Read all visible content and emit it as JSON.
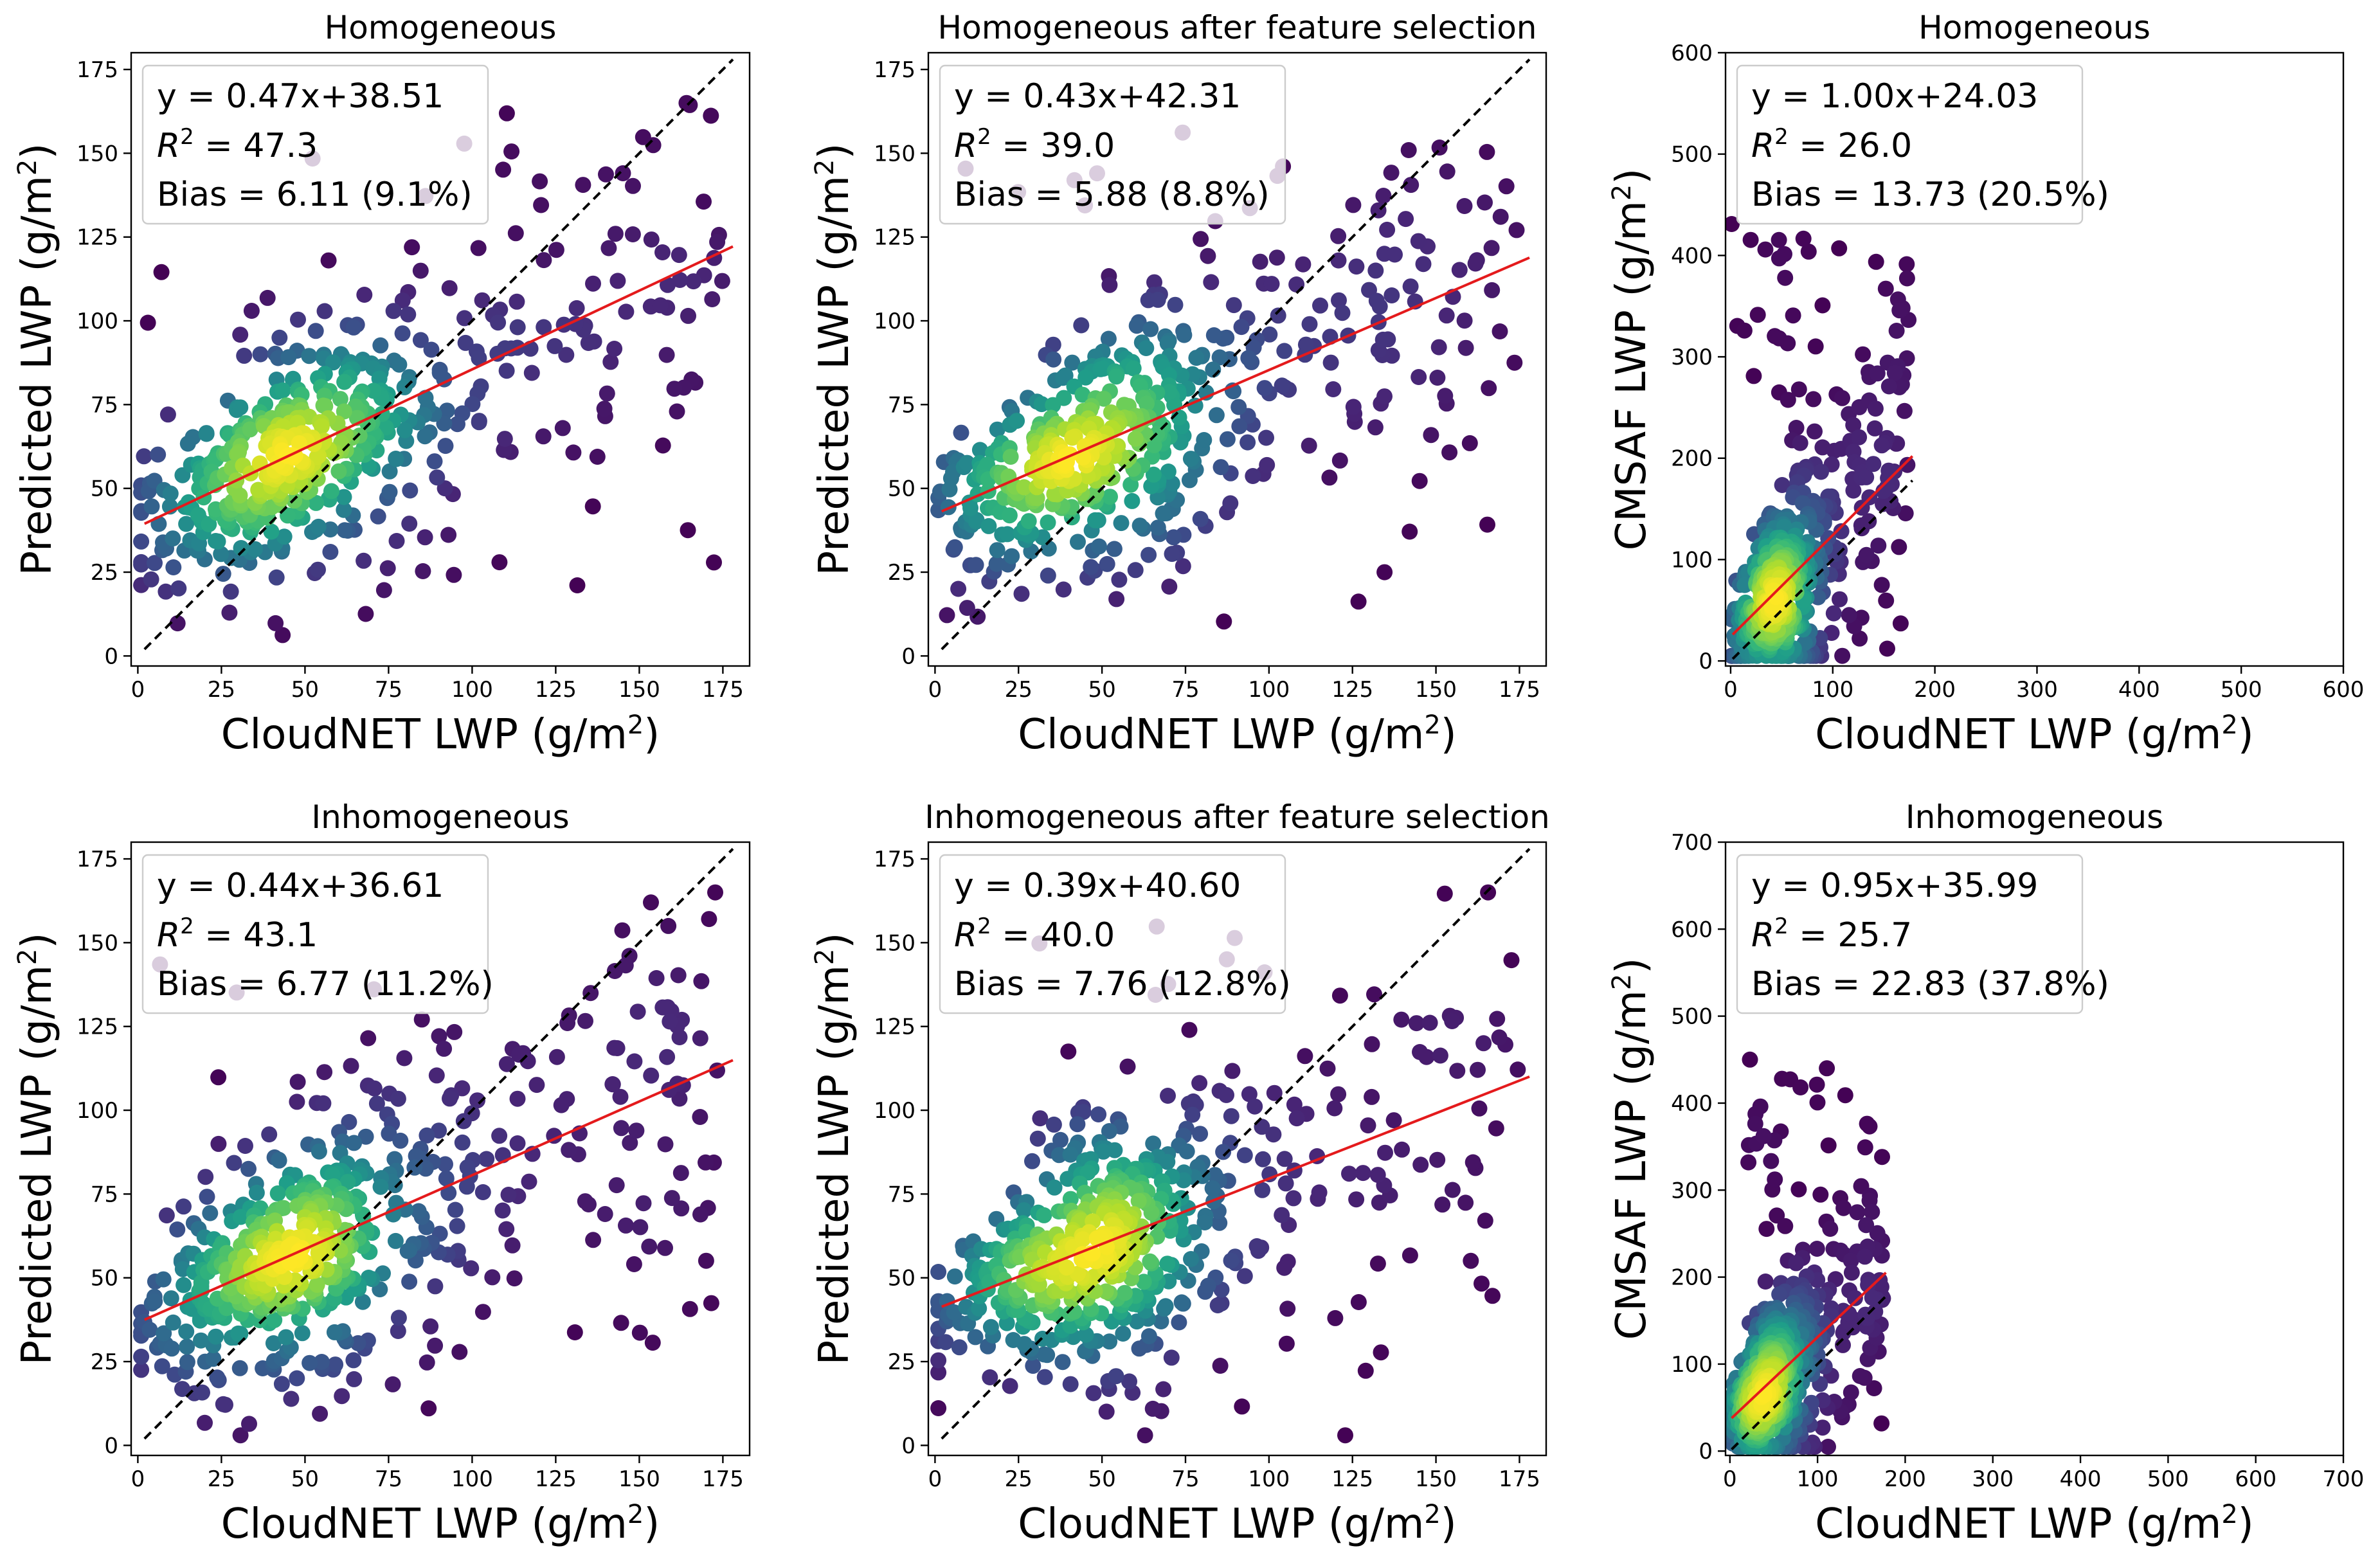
{
  "figure": {
    "panel_title_1": "Homogeneous",
    "panel_title_2": "Homogeneous after feature selection",
    "panel_title_3": "Homogeneous",
    "panel_title_4": "Inhomogeneous",
    "panel_title_5": "Inhomogeneous after feature selection",
    "panel_title_6": "Inhomogeneous"
  },
  "colors": {
    "fit_line": "#e41a1c",
    "identity_line": "#000000",
    "colormap": [
      "#440154",
      "#482878",
      "#3e4989",
      "#31688e",
      "#26828e",
      "#1f9e89",
      "#35b779",
      "#6ece58",
      "#b5de2b",
      "#fde725"
    ]
  },
  "chart_data": [
    {
      "type": "scatter",
      "title": "Homogeneous",
      "xlabel": "CloudNET LWP (g/m",
      "ylabel": "Predicted LWP (g/m",
      "label_sup": "2",
      "label_close": ")",
      "xlim": [
        -2,
        183
      ],
      "ylim": [
        -3,
        180
      ],
      "xticks": [
        0,
        25,
        50,
        75,
        100,
        125,
        150,
        175
      ],
      "yticks": [
        0,
        25,
        50,
        75,
        100,
        125,
        150,
        175
      ],
      "fit": {
        "slope": 0.47,
        "intercept": 38.51
      },
      "identity": [
        2,
        178
      ],
      "n_points": 520,
      "legend": {
        "equation": "y = 0.47x+38.51",
        "r2_label": "R",
        "r2_sup": "2",
        "r2_value": " = 47.3",
        "bias": "Bias = 6.11 (9.1%)"
      }
    },
    {
      "type": "scatter",
      "title": "Homogeneous after feature selection",
      "xlabel": "CloudNET LWP (g/m",
      "ylabel": "Predicted LWP (g/m",
      "label_sup": "2",
      "label_close": ")",
      "xlim": [
        -2,
        183
      ],
      "ylim": [
        -3,
        180
      ],
      "xticks": [
        0,
        25,
        50,
        75,
        100,
        125,
        150,
        175
      ],
      "yticks": [
        0,
        25,
        50,
        75,
        100,
        125,
        150,
        175
      ],
      "fit": {
        "slope": 0.43,
        "intercept": 42.31
      },
      "identity": [
        2,
        178
      ],
      "n_points": 520,
      "legend": {
        "equation": "y = 0.43x+42.31",
        "r2_label": "R",
        "r2_sup": "2",
        "r2_value": " = 39.0",
        "bias": "Bias = 5.88 (8.8%)"
      }
    },
    {
      "type": "scatter",
      "title": "Homogeneous",
      "xlabel": "CloudNET LWP (g/m",
      "ylabel": "CMSAF LWP (g/m",
      "label_sup": "2",
      "label_close": ")",
      "xlim": [
        -5,
        600
      ],
      "ylim": [
        -5,
        600
      ],
      "xticks": [
        0,
        100,
        200,
        300,
        400,
        500,
        600
      ],
      "yticks": [
        0,
        100,
        200,
        300,
        400,
        500,
        600
      ],
      "fit": {
        "slope": 1.0,
        "intercept": 24.03
      },
      "identity": [
        2,
        178
      ],
      "n_points": 520,
      "legend": {
        "equation": "y = 1.00x+24.03",
        "r2_label": "R",
        "r2_sup": "2",
        "r2_value": " = 26.0",
        "bias": "Bias = 13.73 (20.5%)"
      }
    },
    {
      "type": "scatter",
      "title": "Inhomogeneous",
      "xlabel": "CloudNET LWP (g/m",
      "ylabel": "Predicted LWP (g/m",
      "label_sup": "2",
      "label_close": ")",
      "xlim": [
        -2,
        183
      ],
      "ylim": [
        -3,
        180
      ],
      "xticks": [
        0,
        25,
        50,
        75,
        100,
        125,
        150,
        175
      ],
      "yticks": [
        0,
        25,
        50,
        75,
        100,
        125,
        150,
        175
      ],
      "fit": {
        "slope": 0.44,
        "intercept": 36.61
      },
      "identity": [
        2,
        178
      ],
      "n_points": 560,
      "legend": {
        "equation": "y = 0.44x+36.61",
        "r2_label": "R",
        "r2_sup": "2",
        "r2_value": " = 43.1",
        "bias": "Bias = 6.77 (11.2%)"
      }
    },
    {
      "type": "scatter",
      "title": "Inhomogeneous after feature selection",
      "xlabel": "CloudNET LWP (g/m",
      "ylabel": "Predicted LWP (g/m",
      "label_sup": "2",
      "label_close": ")",
      "xlim": [
        -2,
        183
      ],
      "ylim": [
        -3,
        180
      ],
      "xticks": [
        0,
        25,
        50,
        75,
        100,
        125,
        150,
        175
      ],
      "yticks": [
        0,
        25,
        50,
        75,
        100,
        125,
        150,
        175
      ],
      "fit": {
        "slope": 0.39,
        "intercept": 40.6
      },
      "identity": [
        2,
        178
      ],
      "n_points": 560,
      "legend": {
        "equation": "y = 0.39x+40.60",
        "r2_label": "R",
        "r2_sup": "2",
        "r2_value": " = 40.0",
        "bias": "Bias = 7.76 (12.8%)"
      }
    },
    {
      "type": "scatter",
      "title": "Inhomogeneous",
      "xlabel": "CloudNET LWP (g/m",
      "ylabel": "CMSAF LWP (g/m",
      "label_sup": "2",
      "label_close": ")",
      "xlim": [
        -5,
        700
      ],
      "ylim": [
        -5,
        700
      ],
      "xticks": [
        0,
        100,
        200,
        300,
        400,
        500,
        600,
        700
      ],
      "yticks": [
        0,
        100,
        200,
        300,
        400,
        500,
        600,
        700
      ],
      "fit": {
        "slope": 0.95,
        "intercept": 35.99
      },
      "identity": [
        2,
        178
      ],
      "n_points": 560,
      "legend": {
        "equation": "y = 0.95x+35.99",
        "r2_label": "R",
        "r2_sup": "2",
        "r2_value": " = 25.7",
        "bias": "Bias = 22.83 (37.8%)"
      }
    }
  ]
}
